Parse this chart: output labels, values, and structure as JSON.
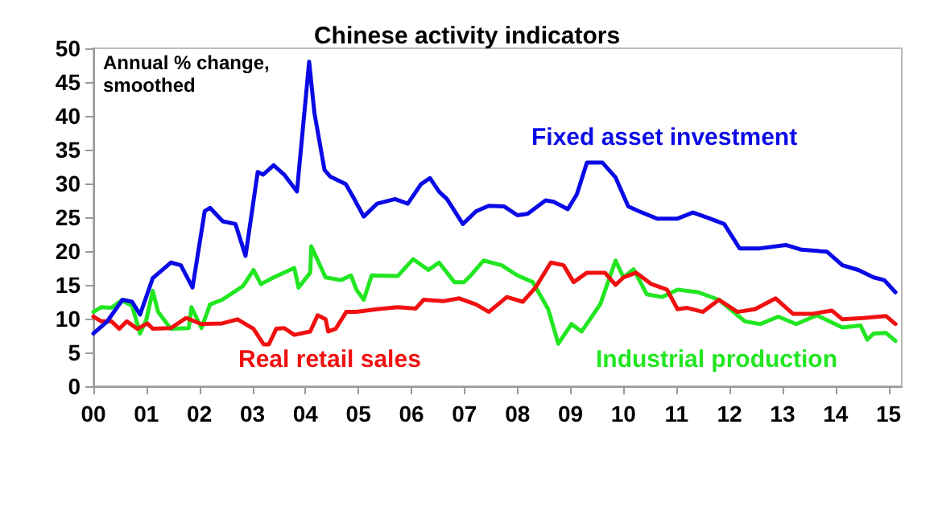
{
  "chart_data": {
    "type": "line",
    "title": "Chinese activity indicators",
    "annotations": [
      "Annual % change,\nsmoothed"
    ],
    "xlim": [
      2000,
      2015.25
    ],
    "xticks": [
      {
        "value": 2000,
        "label": "00"
      },
      {
        "value": 2001,
        "label": "01"
      },
      {
        "value": 2002,
        "label": "02"
      },
      {
        "value": 2003,
        "label": "03"
      },
      {
        "value": 2004,
        "label": "04"
      },
      {
        "value": 2005,
        "label": "05"
      },
      {
        "value": 2006,
        "label": "06"
      },
      {
        "value": 2007,
        "label": "07"
      },
      {
        "value": 2008,
        "label": "08"
      },
      {
        "value": 2009,
        "label": "09"
      },
      {
        "value": 2010,
        "label": "10"
      },
      {
        "value": 2011,
        "label": "11"
      },
      {
        "value": 2012,
        "label": "12"
      },
      {
        "value": 2013,
        "label": "13"
      },
      {
        "value": 2014,
        "label": "14"
      },
      {
        "value": 2015,
        "label": "15"
      }
    ],
    "ylim": [
      0,
      50
    ],
    "yticks": [
      0,
      5,
      10,
      15,
      20,
      25,
      30,
      35,
      40,
      45,
      50
    ],
    "grid": false,
    "legend": false,
    "marker": "none",
    "line_style": "solid",
    "series": [
      {
        "name": "Fixed asset investment",
        "color": "#0a0ae6",
        "x": [
          2000,
          2000.25,
          2000.55,
          2000.73,
          2000.88,
          2001.12,
          2001.46,
          2001.65,
          2001.87,
          2002.1,
          2002.2,
          2002.44,
          2002.68,
          2002.87,
          2003.1,
          2003.2,
          2003.4,
          2003.6,
          2003.84,
          2004.07,
          2004.17,
          2004.36,
          2004.47,
          2004.76,
          2004.9,
          2005.1,
          2005.35,
          2005.69,
          2005.93,
          2006.18,
          2006.35,
          2006.52,
          2006.67,
          2006.97,
          2007.22,
          2007.46,
          2007.75,
          2008,
          2008.19,
          2008.53,
          2008.68,
          2008.95,
          2009.12,
          2009.31,
          2009.6,
          2009.85,
          2010.09,
          2010.29,
          2010.63,
          2011.02,
          2011.31,
          2011.6,
          2011.9,
          2012.19,
          2012.58,
          2013.06,
          2013.36,
          2013.84,
          2014.13,
          2014.43,
          2014.72,
          2014.92,
          2015.13
        ],
        "values": [
          7.8,
          9.5,
          12.8,
          12.5,
          10.6,
          16,
          18.3,
          17.9,
          14.6,
          25.9,
          26.4,
          24.4,
          24,
          19.3,
          31.7,
          31.3,
          32.7,
          31.3,
          28.8,
          48,
          40.4,
          32,
          31,
          29.9,
          28,
          25.1,
          27,
          27.7,
          27,
          29.9,
          30.8,
          28.8,
          27.7,
          24,
          25.9,
          26.7,
          26.6,
          25.3,
          25.5,
          27.5,
          27.3,
          26.2,
          28.4,
          33.1,
          33.1,
          30.9,
          26.6,
          25.9,
          24.8,
          24.8,
          25.7,
          24.9,
          24,
          20.4,
          20.4,
          20.9,
          20.2,
          19.9,
          17.9,
          17.2,
          16.1,
          15.7,
          13.9
        ]
      },
      {
        "name": "Real retail sales",
        "color": "#f01010",
        "x": [
          2000,
          2000.15,
          2000.34,
          2000.49,
          2000.63,
          2000.83,
          2001.02,
          2001.12,
          2001.46,
          2001.75,
          2002.04,
          2002.43,
          2002.72,
          2003.02,
          2003.21,
          2003.31,
          2003.45,
          2003.6,
          2003.79,
          2004.09,
          2004.23,
          2004.38,
          2004.43,
          2004.57,
          2004.77,
          2004.96,
          2005.35,
          2005.74,
          2006.08,
          2006.23,
          2006.61,
          2006.9,
          2007.22,
          2007.46,
          2007.8,
          2008.1,
          2008.34,
          2008.63,
          2008.87,
          2009.06,
          2009.31,
          2009.65,
          2009.85,
          2010,
          2010.24,
          2010.53,
          2010.82,
          2011.02,
          2011.2,
          2011.5,
          2011.8,
          2012.15,
          2012.48,
          2012.87,
          2013.2,
          2013.55,
          2013.93,
          2014.13,
          2014.52,
          2014.95,
          2015.13
        ],
        "values": [
          10.3,
          9.6,
          9.6,
          8.5,
          9.6,
          8.5,
          9.3,
          8.5,
          8.6,
          10.1,
          9.2,
          9.3,
          9.9,
          8.5,
          6.2,
          6.2,
          8.5,
          8.6,
          7.6,
          8.1,
          10.5,
          9.9,
          8.1,
          8.5,
          11,
          11,
          11.4,
          11.7,
          11.5,
          12.8,
          12.6,
          13,
          12.1,
          11,
          13.2,
          12.5,
          14.6,
          18.3,
          17.9,
          15.4,
          16.8,
          16.8,
          15,
          16.1,
          16.8,
          15.1,
          14.3,
          11.4,
          11.6,
          11,
          12.8,
          11,
          11.4,
          13,
          10.7,
          10.7,
          11.2,
          9.9,
          10.1,
          10.4,
          9.2
        ]
      },
      {
        "name": "Industrial production",
        "color": "#22e622",
        "x": [
          2000,
          2000.15,
          2000.34,
          2000.53,
          2000.73,
          2000.88,
          2001,
          2001.12,
          2001.22,
          2001.46,
          2001.8,
          2001.85,
          2002.04,
          2002.2,
          2002.43,
          2002.82,
          2003.02,
          2003.16,
          2003.4,
          2003.79,
          2003.87,
          2004.09,
          2004.11,
          2004.38,
          2004.67,
          2004.86,
          2004.96,
          2005.1,
          2005.25,
          2005.74,
          2006.03,
          2006.32,
          2006.52,
          2006.81,
          2006.99,
          2007.12,
          2007.36,
          2007.7,
          2008,
          2008.29,
          2008.58,
          2008.77,
          2009.02,
          2009.21,
          2009.56,
          2009.85,
          2010,
          2010.19,
          2010.44,
          2010.73,
          2011.02,
          2011.41,
          2011.8,
          2012.29,
          2012.58,
          2012.92,
          2013.26,
          2013.65,
          2014.13,
          2014.47,
          2014.6,
          2014.72,
          2014.95,
          2015.13
        ],
        "values": [
          11,
          11.7,
          11.6,
          12.7,
          11.9,
          7.8,
          9.9,
          14.1,
          11,
          8.5,
          8.6,
          11.7,
          8.6,
          12.1,
          12.8,
          14.8,
          17.2,
          15.1,
          16.1,
          17.5,
          14.6,
          16.8,
          20.7,
          16.1,
          15.7,
          16.4,
          14.3,
          12.8,
          16.4,
          16.3,
          18.8,
          17.2,
          18.3,
          15.4,
          15.4,
          16.4,
          18.6,
          17.9,
          16.4,
          15.4,
          11.4,
          6.3,
          9.2,
          8.1,
          12.1,
          18.6,
          16.1,
          17.3,
          13.6,
          13.2,
          14.3,
          13.9,
          12.8,
          9.6,
          9.2,
          10.3,
          9.2,
          10.5,
          8.7,
          9,
          6.9,
          7.8,
          7.9,
          6.7
        ]
      }
    ]
  }
}
